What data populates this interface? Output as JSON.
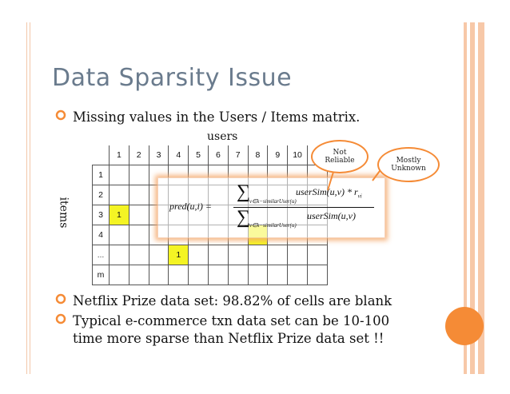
{
  "title": "Data Sparsity Issue",
  "bullets": [
    "Missing values in the Users / Items matrix.",
    "Netflix Prize data set: 98.82% of cells are blank",
    "Typical e-commerce txn data set can be 10-100",
    "time more sparse than Netflix Prize data set !!"
  ],
  "matrix": {
    "users_label": "users",
    "items_label": "items",
    "column_headers": [
      "1",
      "2",
      "3",
      "4",
      "5",
      "6",
      "7",
      "8",
      "9",
      "10"
    ],
    "row_headers": [
      "1",
      "2",
      "3",
      "4",
      "…",
      "m"
    ],
    "filled_cells": [
      {
        "row": "3",
        "col": "1",
        "value": "1"
      },
      {
        "row": "…",
        "col": "4",
        "value": "1"
      }
    ]
  },
  "formula": {
    "lhs": "pred(u,i) =",
    "sum_symbol": "∑",
    "sum_subscript": "v∈k−similarUser(u)",
    "numerator": "userSim(u,v) * r",
    "numerator_subscript": "vi",
    "denominator": "userSim(u,v)"
  },
  "callouts": {
    "not_reliable_1": "Not",
    "not_reliable_2": "Reliable",
    "mostly_unknown_1": "Mostly",
    "mostly_unknown_2": "Unknown"
  },
  "colors": {
    "accent": "#f58b36",
    "title": "#6a7b8d",
    "highlight": "#f4f424"
  }
}
